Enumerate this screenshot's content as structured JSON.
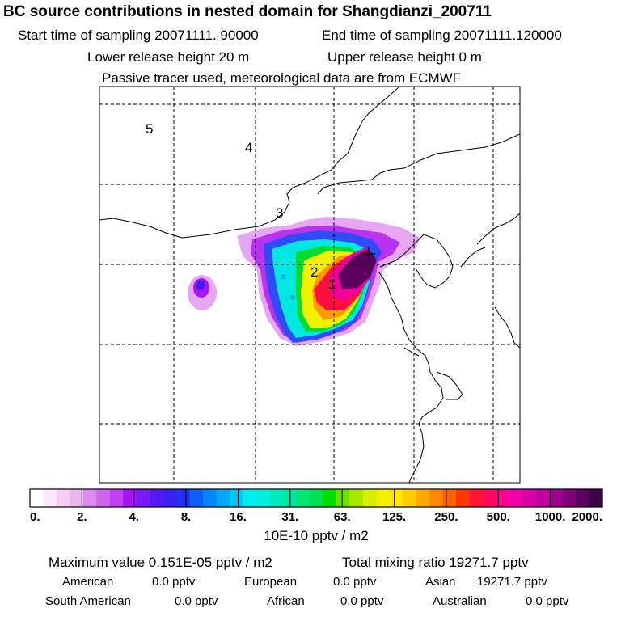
{
  "title": "BC  source contributions in nested domain for Shangdianzi_200711",
  "header": {
    "start_time": "Start time of sampling 20071111. 90000",
    "end_time": "End time of sampling 20071111.120000",
    "lower_release": "Lower release height   20 m",
    "upper_release": "Upper release height    0 m",
    "passive": "Passive tracer used, meteorological data are from ECMWF"
  },
  "chart_data": {
    "type": "heatmap",
    "title": "BC  source contributions in nested domain for Shangdianzi_200711",
    "grid": true,
    "region_labels": [
      "5",
      "4",
      "3",
      "2",
      "1"
    ],
    "colorbar": {
      "ticks": [
        "0.",
        "2.",
        "4.",
        "8.",
        "16.",
        "31.",
        "63.",
        "125.",
        "250.",
        "500.",
        "1000.",
        "2000."
      ],
      "unit": "10E-10 pptv / m2",
      "colors": [
        "#ffffff",
        "#fbe6fb",
        "#f4cef4",
        "#eab4ef",
        "#dc8cf0",
        "#d065f0",
        "#c23ff2",
        "#a813f2",
        "#7a1af5",
        "#5418f2",
        "#3a20f2",
        "#2230f5",
        "#0f5ef5",
        "#0786f5",
        "#05a8f7",
        "#00c8f8",
        "#00eef0",
        "#00eedc",
        "#00eac0",
        "#00e8a0",
        "#00e874",
        "#00e050",
        "#00dc00",
        "#6be000",
        "#a8e800",
        "#d4f000",
        "#f4f000",
        "#ffe800",
        "#ffcc00",
        "#ffa800",
        "#ff8600",
        "#ff6000",
        "#ff3800",
        "#ff1830",
        "#ff0860",
        "#ff0090",
        "#f000a8",
        "#d800a8",
        "#c000a0",
        "#a00090",
        "#800078",
        "#5c0060",
        "#3c0044"
      ]
    },
    "receptor": "Shangdianzi"
  },
  "footer": {
    "max_value": "Maximum value  0.151E-05 pptv / m2",
    "total_mixing": "Total mixing ratio    19271.7 pptv",
    "american_label": "American",
    "american_value": "0.0 pptv",
    "european_label": "European",
    "european_value": "0.0 pptv",
    "asian_label": "Asian",
    "asian_value": "19271.7 pptv",
    "south_american_label": "South American",
    "south_american_value": "0.0 pptv",
    "african_label": "African",
    "african_value": "0.0 pptv",
    "australian_label": "Australian",
    "australian_value": "0.0 pptv"
  }
}
